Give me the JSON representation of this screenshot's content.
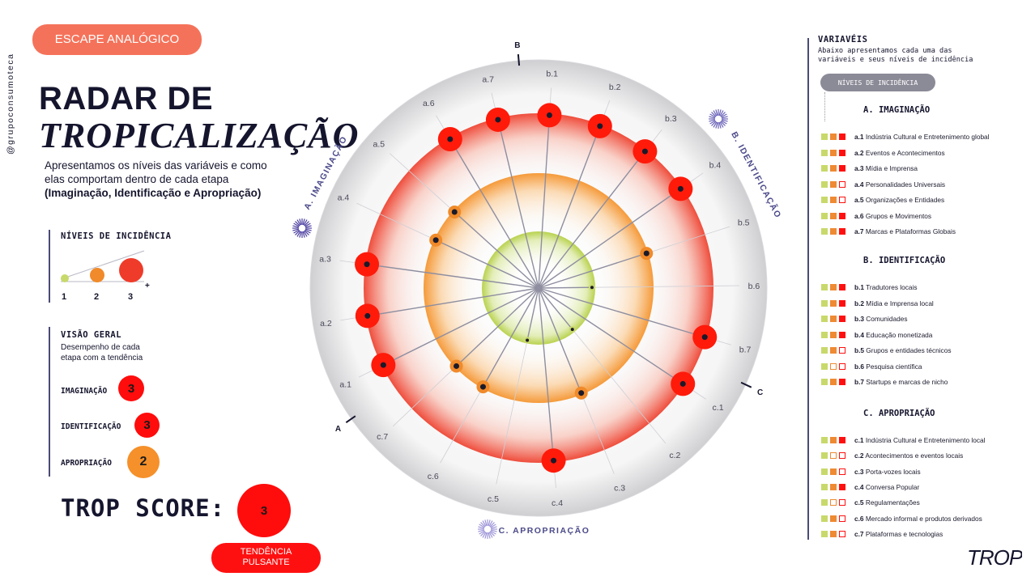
{
  "header": {
    "badge": "ESCAPE ANALÓGICO",
    "vertical_handle": "@grupoconsumoteca",
    "title_line1": "RADAR DE",
    "title_line2": "TROPICALIZAÇÃO",
    "subtitle_line1": "Apresentamos os níveis das variáveis e como",
    "subtitle_line2": "elas comportam dentro de cada etapa",
    "subtitle_line3": "(Imaginação, Identificação e Apropriação)"
  },
  "levels_legend": {
    "title": "NÍVEIS DE INCIDÊNCIA",
    "plus": "+",
    "levels": [
      "1",
      "2",
      "3"
    ],
    "colors": [
      "#c8d96b",
      "#f08a2a",
      "#ef3b2a"
    ]
  },
  "overview": {
    "title": "VISÃO GERAL",
    "desc_line1": "Desempenho de cada",
    "desc_line2": "etapa com a tendência",
    "rows": [
      {
        "label": "IMAGINAÇÃO",
        "value": "3",
        "color": "#ff0c0c"
      },
      {
        "label": "IDENTIFICAÇÃO",
        "value": "3",
        "color": "#ff0c0c"
      },
      {
        "label": "APROPRIAÇÃO",
        "value": "2",
        "color": "#f5902a"
      }
    ]
  },
  "score": {
    "label": "TROP SCORE:",
    "value": "3",
    "tag_line1": "TENDÊNCIA",
    "tag_line2": "PULSANTE"
  },
  "radar": {
    "axis_letters": [
      "A",
      "B",
      "C"
    ],
    "stage_labels": [
      "A. IMAGINAÇÃO",
      "B. IDENTIFICAÇÃO",
      "C. APROPRIAÇÃO"
    ],
    "ring_colors": {
      "outer": "#ef4d3c",
      "middle": "#f59a3a",
      "inner": "#b9d24f"
    },
    "spokes": [
      {
        "id": "a.1",
        "level": 3
      },
      {
        "id": "a.2",
        "level": 3
      },
      {
        "id": "a.3",
        "level": 3
      },
      {
        "id": "a.4",
        "level": 2
      },
      {
        "id": "a.5",
        "level": 2
      },
      {
        "id": "a.6",
        "level": 3
      },
      {
        "id": "a.7",
        "level": 3
      },
      {
        "id": "b.1",
        "level": 3
      },
      {
        "id": "b.2",
        "level": 3
      },
      {
        "id": "b.3",
        "level": 3
      },
      {
        "id": "b.4",
        "level": 3
      },
      {
        "id": "b.5",
        "level": 2
      },
      {
        "id": "b.6",
        "level": 1
      },
      {
        "id": "b.7",
        "level": 3
      },
      {
        "id": "c.1",
        "level": 3
      },
      {
        "id": "c.2",
        "level": 1
      },
      {
        "id": "c.3",
        "level": 2
      },
      {
        "id": "c.4",
        "level": 3
      },
      {
        "id": "c.5",
        "level": 1
      },
      {
        "id": "c.6",
        "level": 2
      },
      {
        "id": "c.7",
        "level": 2
      }
    ]
  },
  "variables": {
    "title": "VARIAVÉIS",
    "desc_line1": "Abaixo apresentamos cada uma das",
    "desc_line2": "variáveis e seus níveis de incidência",
    "pill": "NÍVEIS DE INCIDÊNCIA",
    "sections": [
      {
        "title": "A. IMAGINAÇÃO",
        "items": [
          {
            "code": "a.1",
            "label": "Indústria Cultural e Entretenimento global",
            "level": 3
          },
          {
            "code": "a.2",
            "label": "Eventos e Acontecimentos",
            "level": 3
          },
          {
            "code": "a.3",
            "label": "Mídia e Imprensa",
            "level": 3
          },
          {
            "code": "a.4",
            "label": "Personalidades Universais",
            "level": 2
          },
          {
            "code": "a.5",
            "label": "Organizações e Entidades",
            "level": 2
          },
          {
            "code": "a.6",
            "label": "Grupos e Movimentos",
            "level": 3
          },
          {
            "code": "a.7",
            "label": "Marcas e Plataformas Globais",
            "level": 3
          }
        ]
      },
      {
        "title": "B. IDENTIFICAÇÃO",
        "items": [
          {
            "code": "b.1",
            "label": "Tradutores locais",
            "level": 3
          },
          {
            "code": "b.2",
            "label": "Mídia e Imprensa local",
            "level": 3
          },
          {
            "code": "b.3",
            "label": "Comunidades",
            "level": 3
          },
          {
            "code": "b.4",
            "label": "Educação monetizada",
            "level": 3
          },
          {
            "code": "b.5",
            "label": "Grupos e entidades técnicos",
            "level": 2
          },
          {
            "code": "b.6",
            "label": "Pesquisa científica",
            "level": 1
          },
          {
            "code": "b.7",
            "label": "Startups e marcas de nicho",
            "level": 3
          }
        ]
      },
      {
        "title": "C. APROPRIAÇÃO",
        "items": [
          {
            "code": "c.1",
            "label": "Indústria Cultural e Entretenimento local",
            "level": 3
          },
          {
            "code": "c.2",
            "label": "Acontecimentos e eventos locais",
            "level": 1
          },
          {
            "code": "c.3",
            "label": "Porta-vozes locais",
            "level": 2
          },
          {
            "code": "c.4",
            "label": "Conversa Popular",
            "level": 3
          },
          {
            "code": "c.5",
            "label": "Regulamentações",
            "level": 1
          },
          {
            "code": "c.6",
            "label": "Mercado informal e produtos derivados",
            "level": 2
          },
          {
            "code": "c.7",
            "label": "Plataformas e tecnologias",
            "level": 2
          }
        ]
      }
    ]
  },
  "logo_text": "TROP"
}
